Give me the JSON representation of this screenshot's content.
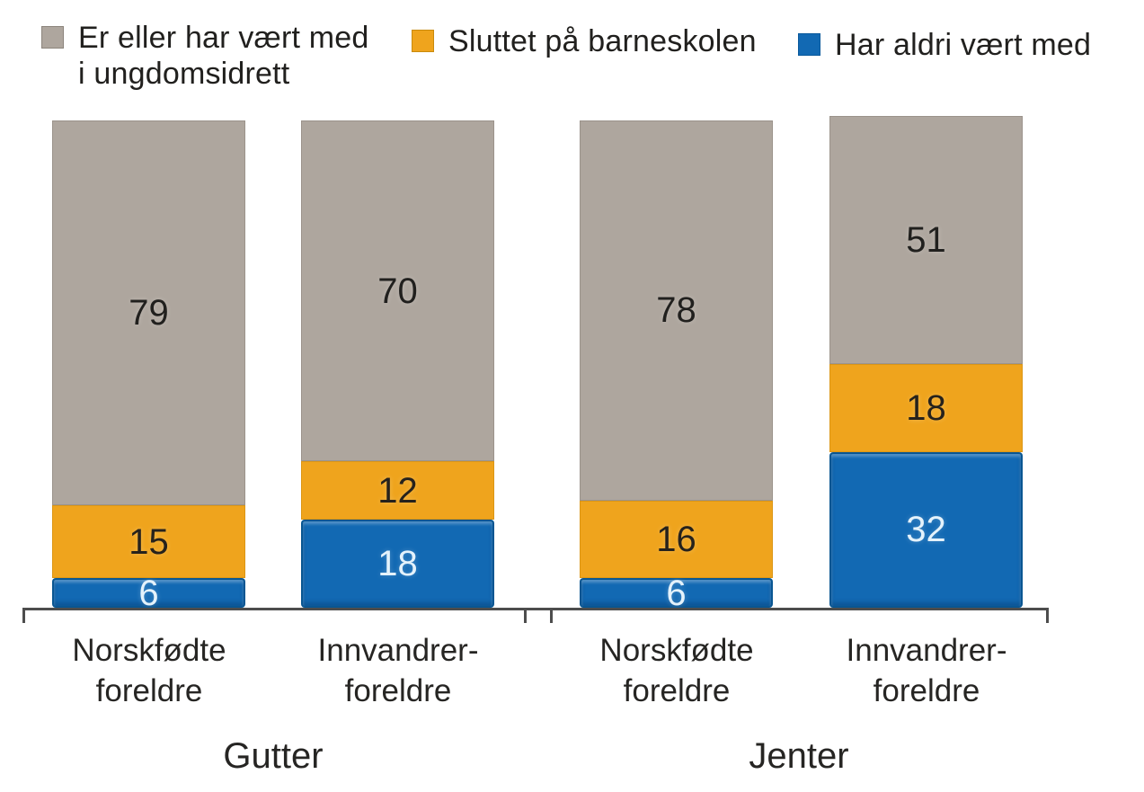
{
  "chart_data": {
    "type": "bar",
    "stacked": true,
    "orientation": "vertical",
    "unit": "percent",
    "ylim": [
      0,
      100
    ],
    "grid": false,
    "legend_position": "top",
    "axis_color": "#4d4d4d",
    "group_labels": [
      "Gutter",
      "Jenter"
    ],
    "categories": [
      "Norskfødte\nforeldre",
      "Innvandrer-\nforeldre",
      "Norskfødte\nforeldre",
      "Innvandrer-\nforeldre"
    ],
    "series": [
      {
        "name": "Er eller har vært med\ni ungdomsidrett",
        "color": "#aea69e",
        "border_color": "#8c847c",
        "label_color": "#21201e",
        "values": [
          79,
          70,
          78,
          51
        ]
      },
      {
        "name": "Sluttet på barneskolen",
        "color": "#efa41d",
        "border_color": "#c98a0c",
        "label_color": "#26221c",
        "values": [
          15,
          12,
          16,
          18
        ]
      },
      {
        "name": "Har aldri vært med",
        "color": "#1269b3",
        "border_color": "#0a5a9c",
        "label_color": "#e4f2fb",
        "values": [
          6,
          18,
          6,
          32
        ]
      }
    ]
  }
}
